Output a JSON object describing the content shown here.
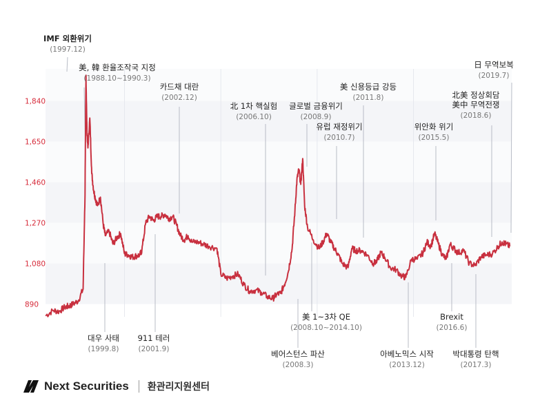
{
  "chart_data": {
    "type": "line",
    "ylim": [
      830,
      1990
    ],
    "yticks": [
      "890",
      "1,080",
      "1,270",
      "1,460",
      "1,650",
      "1,840"
    ],
    "yticks_values": [
      890,
      1080,
      1270,
      1460,
      1650,
      1840
    ],
    "x_range": [
      1995.9,
      2020.1
    ],
    "line_color": "#c8303f",
    "series": [
      {
        "points": [
          [
            1995.9,
            835
          ],
          [
            1996.3,
            860
          ],
          [
            1996.6,
            855
          ],
          [
            1996.9,
            875
          ],
          [
            1997.1,
            880
          ],
          [
            1997.3,
            888
          ],
          [
            1997.6,
            905
          ],
          [
            1997.85,
            960
          ],
          [
            1997.95,
            1400
          ],
          [
            1998.0,
            1960
          ],
          [
            1998.05,
            1700
          ],
          [
            1998.1,
            1620
          ],
          [
            1998.2,
            1760
          ],
          [
            1998.3,
            1500
          ],
          [
            1998.4,
            1420
          ],
          [
            1998.5,
            1380
          ],
          [
            1998.6,
            1350
          ],
          [
            1998.75,
            1390
          ],
          [
            1998.9,
            1260
          ],
          [
            1999.0,
            1210
          ],
          [
            1999.2,
            1230
          ],
          [
            1999.4,
            1170
          ],
          [
            1999.6,
            1200
          ],
          [
            1999.8,
            1220
          ],
          [
            2000.0,
            1125
          ],
          [
            2000.2,
            1120
          ],
          [
            2000.4,
            1110
          ],
          [
            2000.6,
            1115
          ],
          [
            2000.8,
            1120
          ],
          [
            2000.9,
            1140
          ],
          [
            2001.1,
            1270
          ],
          [
            2001.3,
            1300
          ],
          [
            2001.5,
            1280
          ],
          [
            2001.7,
            1300
          ],
          [
            2001.9,
            1300
          ],
          [
            2002.1,
            1310
          ],
          [
            2002.3,
            1290
          ],
          [
            2002.5,
            1300
          ],
          [
            2002.7,
            1260
          ],
          [
            2002.9,
            1210
          ],
          [
            2003.1,
            1190
          ],
          [
            2003.3,
            1210
          ],
          [
            2003.5,
            1180
          ],
          [
            2003.8,
            1180
          ],
          [
            2004.1,
            1170
          ],
          [
            2004.4,
            1160
          ],
          [
            2004.8,
            1150
          ],
          [
            2005.0,
            1030
          ],
          [
            2005.3,
            1010
          ],
          [
            2005.6,
            1020
          ],
          [
            2005.9,
            1030
          ],
          [
            2006.2,
            980
          ],
          [
            2006.5,
            950
          ],
          [
            2006.8,
            955
          ],
          [
            2007.1,
            945
          ],
          [
            2007.4,
            925
          ],
          [
            2007.7,
            915
          ],
          [
            2007.9,
            935
          ],
          [
            2008.1,
            940
          ],
          [
            2008.3,
            980
          ],
          [
            2008.5,
            1040
          ],
          [
            2008.7,
            1150
          ],
          [
            2008.85,
            1330
          ],
          [
            2008.95,
            1470
          ],
          [
            2009.05,
            1520
          ],
          [
            2009.15,
            1450
          ],
          [
            2009.25,
            1570
          ],
          [
            2009.35,
            1350
          ],
          [
            2009.5,
            1250
          ],
          [
            2009.8,
            1190
          ],
          [
            2010.1,
            1150
          ],
          [
            2010.3,
            1180
          ],
          [
            2010.5,
            1220
          ],
          [
            2010.7,
            1180
          ],
          [
            2010.9,
            1150
          ],
          [
            2011.1,
            1120
          ],
          [
            2011.3,
            1080
          ],
          [
            2011.6,
            1060
          ],
          [
            2011.8,
            1150
          ],
          [
            2012.0,
            1140
          ],
          [
            2012.3,
            1140
          ],
          [
            2012.6,
            1120
          ],
          [
            2012.9,
            1080
          ],
          [
            2013.1,
            1090
          ],
          [
            2013.3,
            1130
          ],
          [
            2013.5,
            1110
          ],
          [
            2013.8,
            1060
          ],
          [
            2014.1,
            1050
          ],
          [
            2014.4,
            1020
          ],
          [
            2014.6,
            1015
          ],
          [
            2014.9,
            1100
          ],
          [
            2015.2,
            1100
          ],
          [
            2015.5,
            1130
          ],
          [
            2015.7,
            1180
          ],
          [
            2015.9,
            1160
          ],
          [
            2016.1,
            1220
          ],
          [
            2016.3,
            1170
          ],
          [
            2016.5,
            1120
          ],
          [
            2016.7,
            1100
          ],
          [
            2016.9,
            1170
          ],
          [
            2017.1,
            1150
          ],
          [
            2017.3,
            1130
          ],
          [
            2017.6,
            1140
          ],
          [
            2017.9,
            1080
          ],
          [
            2018.2,
            1070
          ],
          [
            2018.5,
            1110
          ],
          [
            2018.8,
            1120
          ],
          [
            2019.1,
            1125
          ],
          [
            2019.4,
            1160
          ],
          [
            2019.6,
            1180
          ],
          [
            2019.8,
            1170
          ],
          [
            2020.0,
            1160
          ]
        ]
      }
    ],
    "annotations": [
      {
        "label": "IMF 외환위기",
        "date": "(1997.12)",
        "bold": true
      },
      {
        "label": "美, 韓 환율조작국 지정",
        "date": "(1988.10~1990.3)"
      },
      {
        "label": "카드채 대란",
        "date": "(2002.12)"
      },
      {
        "label": "北 1차 핵실험",
        "date": "(2006.10)"
      },
      {
        "label": "글로벌 금융위기",
        "date": "(2008.9)"
      },
      {
        "label": "유럽 재정위기",
        "date": "(2010.7)"
      },
      {
        "label": "美 신용등급 강등",
        "date": "(2011.8)"
      },
      {
        "label": "위안화 위기",
        "date": "(2015.5)"
      },
      {
        "label": "北美 정상회담",
        "label2": "美中 무역전쟁",
        "date": "(2018.6)"
      },
      {
        "label": "日 무역보복",
        "date": "(2019.7)"
      },
      {
        "label": "대우 사태",
        "date": "(1999.8)"
      },
      {
        "label": "911 테러",
        "date": "(2001.9)"
      },
      {
        "label": "베어스턴스 파산",
        "date": "(2008.3)"
      },
      {
        "label": "美 1~3차 QE",
        "date": "(2008.10~2014.10)"
      },
      {
        "label": "아베노믹스 시작",
        "date": "(2013.12)"
      },
      {
        "label": "Brexit",
        "date": "(2016.6)"
      },
      {
        "label": "박대통령 탄핵",
        "date": "(2017.3)"
      }
    ]
  },
  "footer": {
    "brand": "Next Securities",
    "center": "환관리지원센터"
  }
}
